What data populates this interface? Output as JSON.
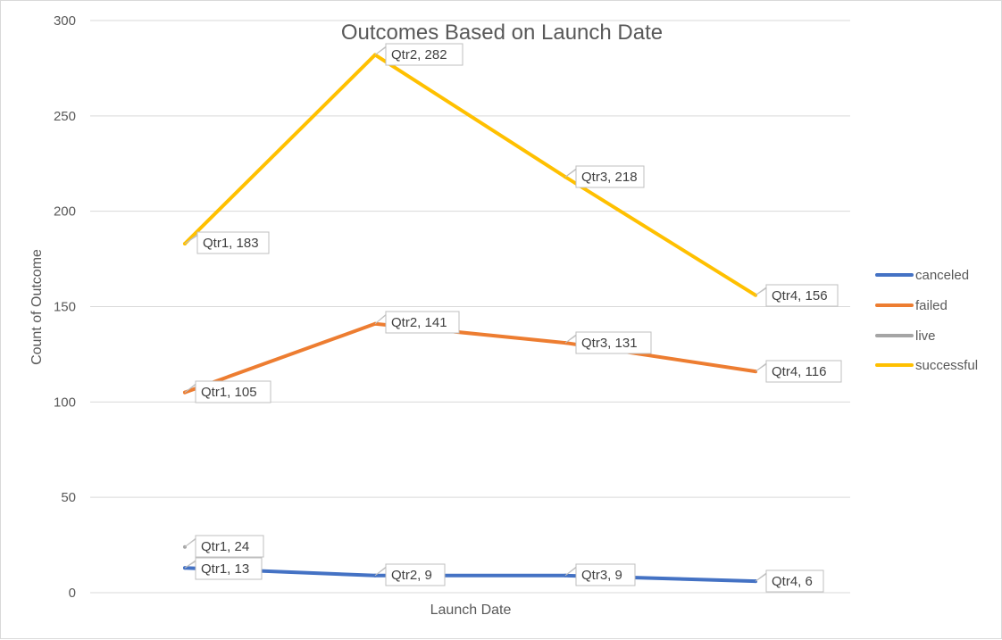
{
  "chart_data": {
    "type": "line",
    "title": "Outcomes Based on Launch Date",
    "xlabel": "Launch Date",
    "ylabel": "Count of Outcome",
    "categories": [
      "Qtr1",
      "Qtr2",
      "Qtr3",
      "Qtr4"
    ],
    "ylim": [
      0,
      300
    ],
    "yticks": [
      "0",
      "50",
      "100",
      "150",
      "200",
      "250",
      "300"
    ],
    "grid": true,
    "legend_position": "right",
    "series": [
      {
        "name": "canceled",
        "color": "#4472C4",
        "values": [
          13,
          9,
          9,
          6
        ],
        "labels": [
          "Qtr1, 13",
          "Qtr2, 9",
          "Qtr3, 9",
          "Qtr4, 6"
        ]
      },
      {
        "name": "failed",
        "color": "#ED7D31",
        "values": [
          105,
          141,
          131,
          116
        ],
        "labels": [
          "Qtr1, 105",
          "Qtr2, 141",
          "Qtr3, 131",
          "Qtr4, 116"
        ]
      },
      {
        "name": "live",
        "color": "#A5A5A5",
        "values": [
          24,
          null,
          null,
          null
        ],
        "labels": [
          "Qtr1, 24",
          null,
          null,
          null
        ]
      },
      {
        "name": "successful",
        "color": "#FFC000",
        "values": [
          183,
          282,
          218,
          156
        ],
        "labels": [
          "Qtr1, 183",
          "Qtr2, 282",
          "Qtr3, 218",
          "Qtr4, 156"
        ]
      }
    ]
  }
}
